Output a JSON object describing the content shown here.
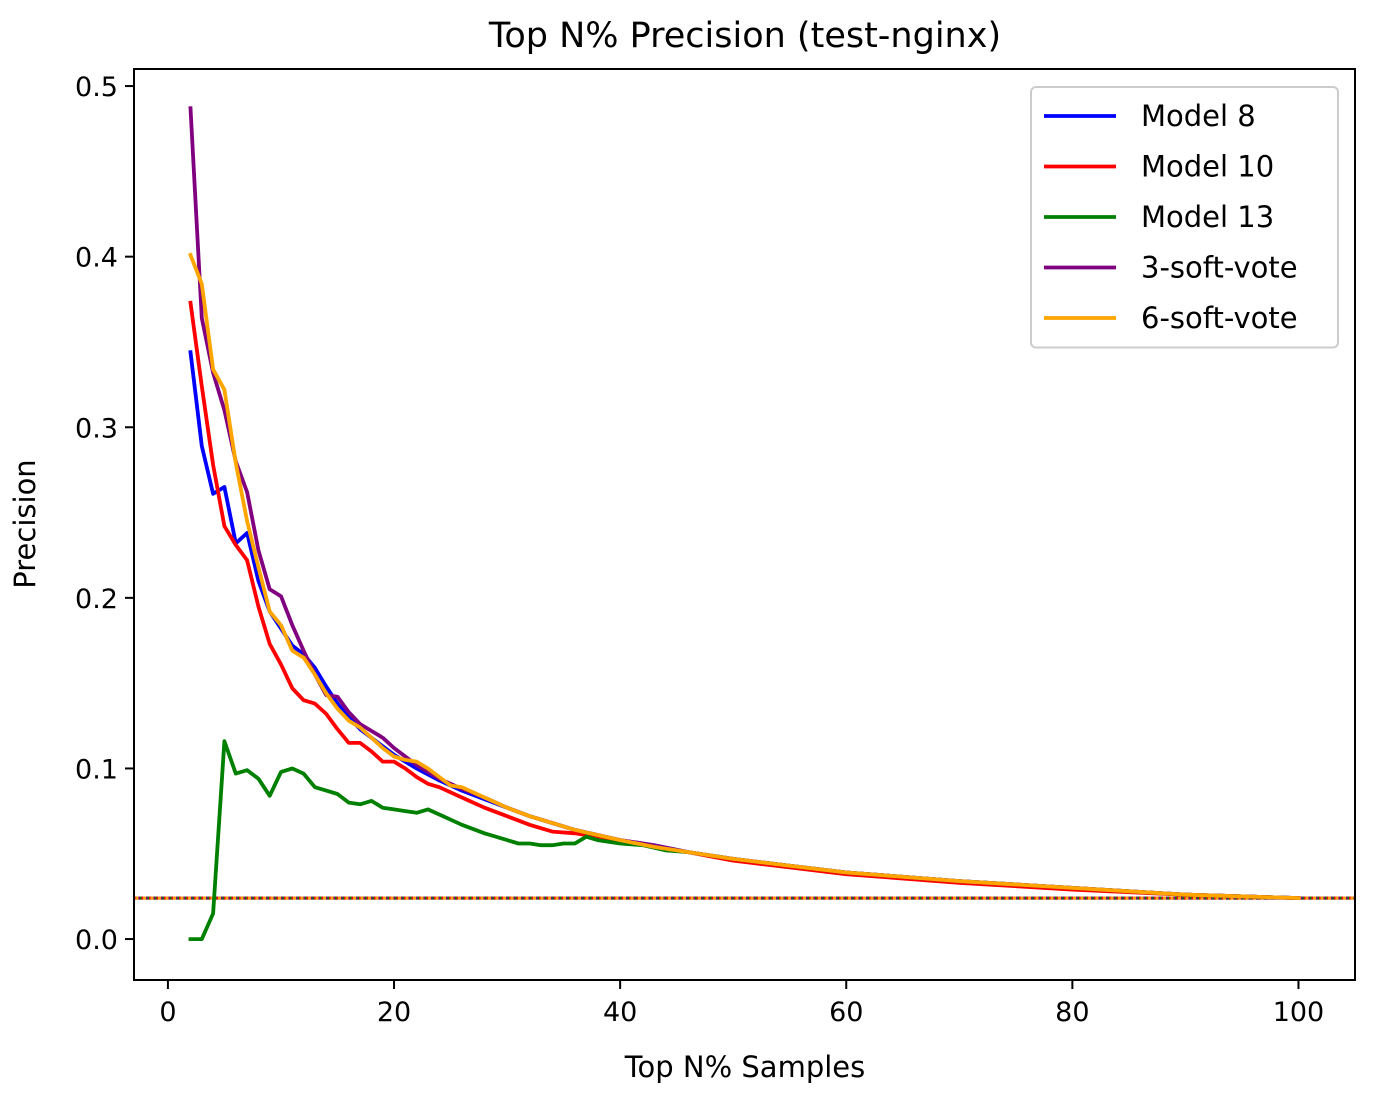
{
  "chart_data": {
    "type": "line",
    "title": "Top N% Precision (test-nginx)",
    "xlabel": "Top N% Samples",
    "ylabel": "Precision",
    "xlim": [
      -3,
      105
    ],
    "ylim": [
      -0.024,
      0.51
    ],
    "xticks": [
      0,
      20,
      40,
      60,
      80,
      100
    ],
    "yticks": [
      0.0,
      0.1,
      0.2,
      0.3,
      0.4,
      0.5
    ],
    "grid": false,
    "legend": "top-right",
    "baseline": {
      "y": 0.024,
      "colors": [
        "#0000ff",
        "#ff0000",
        "#008000",
        "#800080",
        "#ffa500"
      ],
      "style": "dotted"
    },
    "series": [
      {
        "name": "Model 8",
        "color": "#0000ff",
        "x": [
          2,
          3,
          4,
          5,
          6,
          7,
          8,
          9,
          10,
          11,
          12,
          13,
          14,
          15,
          16,
          17,
          18,
          19,
          20,
          22,
          24,
          26,
          28,
          30,
          32,
          34,
          36,
          38,
          40,
          43,
          46,
          50,
          55,
          60,
          70,
          80,
          90,
          100
        ],
        "y": [
          0.344,
          0.289,
          0.261,
          0.265,
          0.232,
          0.238,
          0.21,
          0.192,
          0.182,
          0.172,
          0.167,
          0.159,
          0.148,
          0.138,
          0.13,
          0.123,
          0.118,
          0.113,
          0.108,
          0.1,
          0.093,
          0.087,
          0.082,
          0.077,
          0.072,
          0.068,
          0.064,
          0.061,
          0.058,
          0.055,
          0.051,
          0.047,
          0.043,
          0.039,
          0.034,
          0.03,
          0.026,
          0.024
        ]
      },
      {
        "name": "Model 10",
        "color": "#ff0000",
        "x": [
          2,
          3,
          4,
          5,
          6,
          7,
          8,
          9,
          10,
          11,
          12,
          13,
          14,
          15,
          16,
          17,
          18,
          19,
          20,
          21,
          22,
          23,
          24,
          26,
          28,
          30,
          32,
          34,
          36,
          38,
          40,
          43,
          46,
          50,
          55,
          60,
          70,
          80,
          90,
          100
        ],
        "y": [
          0.373,
          0.324,
          0.278,
          0.242,
          0.231,
          0.222,
          0.195,
          0.173,
          0.161,
          0.147,
          0.14,
          0.138,
          0.132,
          0.123,
          0.115,
          0.115,
          0.11,
          0.104,
          0.104,
          0.1,
          0.095,
          0.091,
          0.089,
          0.083,
          0.077,
          0.072,
          0.067,
          0.063,
          0.062,
          0.06,
          0.058,
          0.054,
          0.051,
          0.046,
          0.042,
          0.038,
          0.033,
          0.029,
          0.026,
          0.024
        ]
      },
      {
        "name": "Model 13",
        "color": "#008000",
        "x": [
          2,
          3,
          4,
          5,
          6,
          7,
          8,
          9,
          10,
          11,
          12,
          13,
          14,
          15,
          16,
          17,
          18,
          19,
          20,
          21,
          22,
          23,
          24,
          26,
          28,
          30,
          31,
          32,
          33,
          34,
          35,
          36,
          37,
          38,
          40,
          42,
          44,
          46,
          50,
          55,
          60,
          70,
          80,
          90,
          100
        ],
        "y": [
          0.0,
          0.0,
          0.015,
          0.116,
          0.097,
          0.099,
          0.094,
          0.084,
          0.098,
          0.1,
          0.097,
          0.089,
          0.087,
          0.085,
          0.08,
          0.079,
          0.081,
          0.077,
          0.076,
          0.075,
          0.074,
          0.076,
          0.073,
          0.067,
          0.062,
          0.058,
          0.056,
          0.056,
          0.055,
          0.055,
          0.056,
          0.056,
          0.06,
          0.058,
          0.056,
          0.055,
          0.052,
          0.051,
          0.047,
          0.043,
          0.039,
          0.034,
          0.03,
          0.026,
          0.024
        ]
      },
      {
        "name": "3-soft-vote",
        "color": "#800080",
        "x": [
          2,
          3,
          4,
          5,
          6,
          7,
          8,
          9,
          10,
          11,
          12,
          13,
          14,
          15,
          16,
          17,
          18,
          19,
          20,
          22,
          24,
          26,
          28,
          30,
          32,
          34,
          36,
          38,
          40,
          43,
          46,
          50,
          55,
          60,
          70,
          80,
          90,
          100
        ],
        "y": [
          0.487,
          0.364,
          0.332,
          0.31,
          0.28,
          0.262,
          0.228,
          0.205,
          0.201,
          0.184,
          0.169,
          0.155,
          0.143,
          0.142,
          0.133,
          0.126,
          0.122,
          0.118,
          0.112,
          0.102,
          0.094,
          0.088,
          0.083,
          0.077,
          0.072,
          0.068,
          0.064,
          0.061,
          0.058,
          0.055,
          0.051,
          0.047,
          0.043,
          0.039,
          0.034,
          0.03,
          0.026,
          0.024
        ]
      },
      {
        "name": "6-soft-vote",
        "color": "#ffa500",
        "x": [
          2,
          3,
          4,
          5,
          6,
          7,
          8,
          9,
          10,
          11,
          12,
          13,
          14,
          15,
          16,
          17,
          18,
          19,
          20,
          21,
          22,
          23,
          24,
          25,
          26,
          28,
          30,
          32,
          34,
          36,
          38,
          40,
          43,
          46,
          50,
          55,
          60,
          70,
          80,
          90,
          100
        ],
        "y": [
          0.401,
          0.384,
          0.334,
          0.322,
          0.279,
          0.245,
          0.218,
          0.192,
          0.184,
          0.169,
          0.165,
          0.155,
          0.144,
          0.135,
          0.128,
          0.124,
          0.118,
          0.112,
          0.107,
          0.105,
          0.104,
          0.1,
          0.095,
          0.09,
          0.089,
          0.083,
          0.077,
          0.072,
          0.068,
          0.064,
          0.061,
          0.058,
          0.054,
          0.051,
          0.047,
          0.043,
          0.039,
          0.034,
          0.03,
          0.026,
          0.024
        ]
      }
    ]
  }
}
